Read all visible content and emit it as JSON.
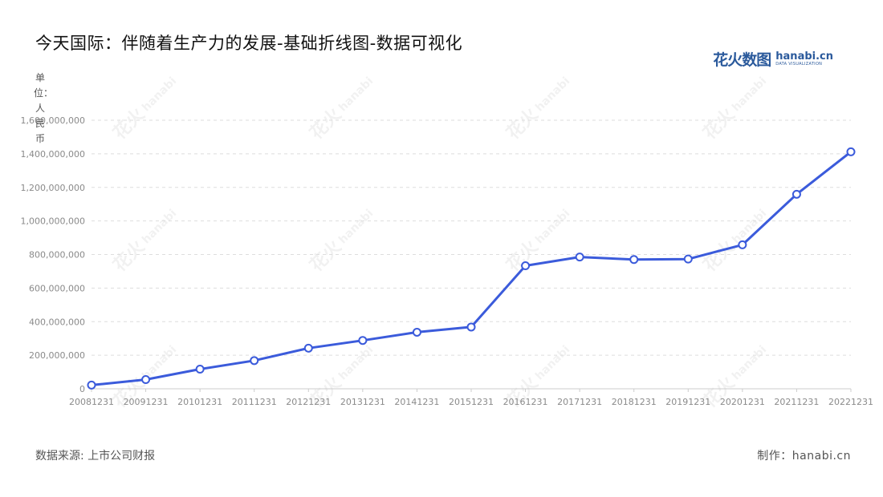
{
  "title": "今天国际：伴随着生产力的发展-基础折线图-数据可视化",
  "logo": {
    "cn": "花火数图",
    "en": "hanabi.cn",
    "sub": "DATA VISUALIZATION"
  },
  "unit_label": "单位：人民币",
  "footer": {
    "source": "数据来源: 上市公司财报",
    "credit": "制作：hanabi.cn"
  },
  "colors": {
    "line": "#3b5bdb",
    "grid": "#dddddd",
    "axis": "#cccccc",
    "marker_fill": "#ffffff"
  },
  "chart_data": {
    "type": "line",
    "title": "今天国际：伴随着生产力的发展-基础折线图-数据可视化",
    "ylabel": "单位：人民币",
    "xlabel": "",
    "categories": [
      "20081231",
      "20091231",
      "20101231",
      "20111231",
      "20121231",
      "20131231",
      "20141231",
      "20151231",
      "20161231",
      "20171231",
      "20181231",
      "20191231",
      "20201231",
      "20211231",
      "20221231"
    ],
    "series": [
      {
        "values": [
          22000000,
          55000000,
          117000000,
          168000000,
          242000000,
          288000000,
          337000000,
          368000000,
          733000000,
          785000000,
          770000000,
          773000000,
          858000000,
          1159000000,
          1412000000
        ]
      }
    ],
    "ylim": [
      0,
      1600000000
    ],
    "yticks": [
      "0",
      "200,000,000",
      "400,000,000",
      "600,000,000",
      "800,000,000",
      "1,000,000,000",
      "1,200,000,000",
      "1,400,000,000",
      "1,600,000,000"
    ],
    "grid": true,
    "legend": "none"
  }
}
